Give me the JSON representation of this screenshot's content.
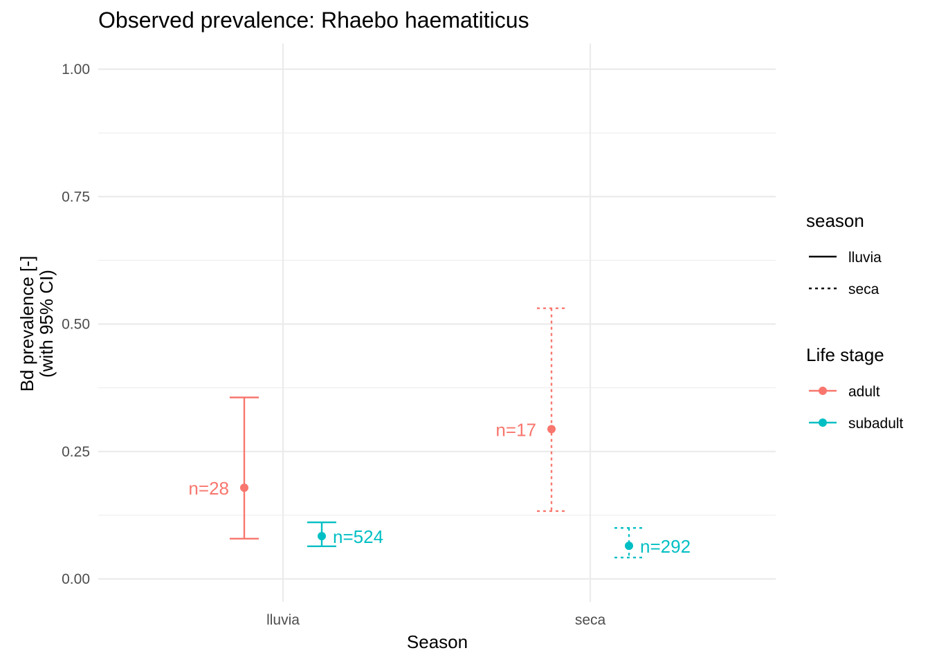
{
  "chart_data": {
    "type": "errorbar",
    "title": "Observed prevalence: Rhaebo haematiticus",
    "xlabel": "Season",
    "ylabel_line1": "Bd prevalence [-]",
    "ylabel_line2": "(with 95% CI)",
    "categories": [
      "lluvia",
      "seca"
    ],
    "ylim": [
      -0.05,
      1.05
    ],
    "yticks": [
      0.0,
      0.25,
      0.5,
      0.75,
      1.0
    ],
    "ytick_labels": [
      "0.00",
      "0.25",
      "0.50",
      "0.75",
      "1.00"
    ],
    "grid": true,
    "series": [
      {
        "name": "adult",
        "color": "#F8766D",
        "points": [
          {
            "season": "lluvia",
            "value": 0.179,
            "lower": 0.079,
            "upper": 0.356,
            "n_label": "n=28"
          },
          {
            "season": "seca",
            "value": 0.294,
            "lower": 0.133,
            "upper": 0.531,
            "n_label": "n=17"
          }
        ]
      },
      {
        "name": "subadult",
        "color": "#00BFC4",
        "points": [
          {
            "season": "lluvia",
            "value": 0.084,
            "lower": 0.064,
            "upper": 0.111,
            "n_label": "n=524"
          },
          {
            "season": "seca",
            "value": 0.065,
            "lower": 0.042,
            "upper": 0.1,
            "n_label": "n=292"
          }
        ]
      }
    ],
    "linetype_by_season": {
      "lluvia": "solid",
      "seca": "dashed"
    },
    "legends": [
      {
        "title": "season",
        "items": [
          {
            "label": "lluvia",
            "linetype": "solid"
          },
          {
            "label": "seca",
            "linetype": "dashed"
          }
        ]
      },
      {
        "title": "Life stage",
        "items": [
          {
            "label": "adult",
            "color": "#F8766D"
          },
          {
            "label": "subadult",
            "color": "#00BFC4"
          }
        ]
      }
    ],
    "legend_position": "right"
  }
}
